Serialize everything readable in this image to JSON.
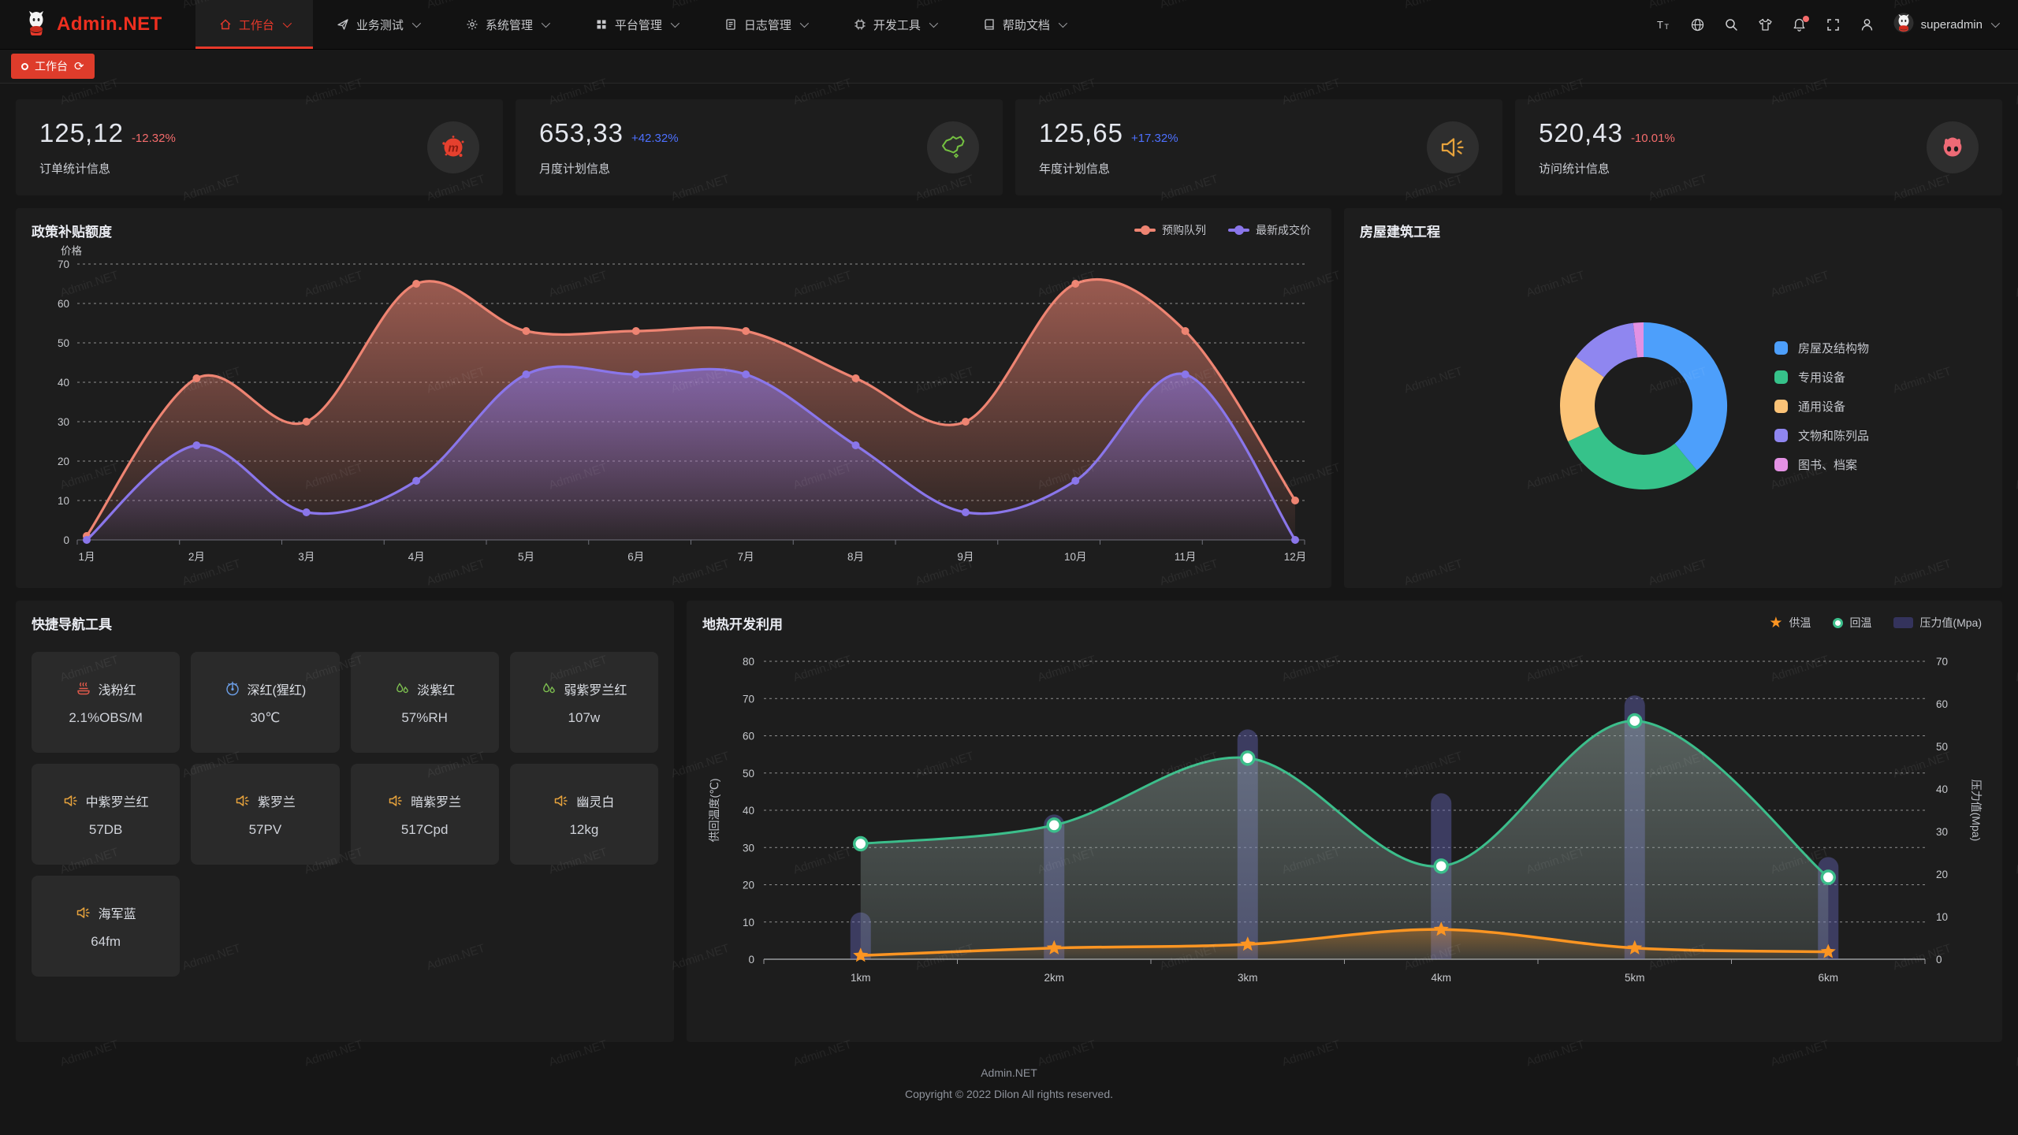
{
  "navbar": {
    "logo_text": "Admin.NET",
    "menu": [
      {
        "key": "workbench",
        "label": "工作台",
        "icon": "home-icon",
        "active": true
      },
      {
        "key": "business",
        "label": "业务测试",
        "icon": "send-icon",
        "active": false
      },
      {
        "key": "system",
        "label": "系统管理",
        "icon": "gear-icon",
        "active": false
      },
      {
        "key": "platform",
        "label": "平台管理",
        "icon": "grid-icon",
        "active": false
      },
      {
        "key": "logs",
        "label": "日志管理",
        "icon": "doc-icon",
        "active": false
      },
      {
        "key": "devtools",
        "label": "开发工具",
        "icon": "chip-icon",
        "active": false
      },
      {
        "key": "docs",
        "label": "帮助文档",
        "icon": "book-icon",
        "active": false
      }
    ],
    "actions": [
      {
        "key": "font-size",
        "icon": "font-size-icon",
        "badge": false
      },
      {
        "key": "language",
        "icon": "globe-icon",
        "badge": false
      },
      {
        "key": "search",
        "icon": "search-icon",
        "badge": false
      },
      {
        "key": "theme",
        "icon": "theme-icon",
        "badge": false
      },
      {
        "key": "notifications",
        "icon": "bell-icon",
        "badge": true
      },
      {
        "key": "fullscreen",
        "icon": "fullscreen-icon",
        "badge": false
      },
      {
        "key": "profile",
        "icon": "person-icon",
        "badge": false
      }
    ],
    "user": {
      "name": "superadmin"
    }
  },
  "tabsbar": {
    "active_tab": "工作台"
  },
  "stat_cards": [
    {
      "value": "125,12",
      "trend": "-12.32%",
      "direction": "down",
      "label": "订单统计信息",
      "icon": "meetup-icon"
    },
    {
      "value": "653,33",
      "trend": "+42.32%",
      "direction": "up",
      "label": "月度计划信息",
      "icon": "china-map-icon"
    },
    {
      "value": "125,65",
      "trend": "+17.32%",
      "direction": "up",
      "label": "年度计划信息",
      "icon": "horn-icon"
    },
    {
      "value": "520,43",
      "trend": "-10.01%",
      "direction": "down",
      "label": "访问统计信息",
      "icon": "cat-icon"
    }
  ],
  "panels": {
    "policy": {
      "title": "政策补贴额度"
    },
    "housing": {
      "title": "房屋建筑工程"
    },
    "tools": {
      "title": "快捷导航工具"
    },
    "geothermal": {
      "title": "地热开发利用"
    }
  },
  "tools": [
    {
      "name": "浅粉红",
      "value": "2.1%OBS/M",
      "icon": "steamer-icon",
      "icon_color": "#E35A4B"
    },
    {
      "name": "深红(猩红)",
      "value": "30℃",
      "icon": "thermometer-icon",
      "icon_color": "#6C9FE8"
    },
    {
      "name": "淡紫红",
      "value": "57%RH",
      "icon": "droplets-icon",
      "icon_color": "#7EC050"
    },
    {
      "name": "弱紫罗兰红",
      "value": "107w",
      "icon": "droplets-icon",
      "icon_color": "#7EC050"
    },
    {
      "name": "中紫罗兰红",
      "value": "57DB",
      "icon": "speaker-icon",
      "icon_color": "#E6A23C"
    },
    {
      "name": "紫罗兰",
      "value": "57PV",
      "icon": "speaker-icon",
      "icon_color": "#E6A23C"
    },
    {
      "name": "暗紫罗兰",
      "value": "517Cpd",
      "icon": "speaker-icon",
      "icon_color": "#E6A23C"
    },
    {
      "name": "幽灵白",
      "value": "12kg",
      "icon": "speaker-icon",
      "icon_color": "#E6A23C"
    },
    {
      "name": "海军蓝",
      "value": "64fm",
      "icon": "speaker-icon",
      "icon_color": "#E6A23C"
    }
  ],
  "chart_data": [
    {
      "id": "policy",
      "type": "line",
      "title": "政策补贴额度",
      "ylabel": "价格",
      "ylim": [
        0,
        70
      ],
      "grid": true,
      "legend_position": "top-right",
      "categories": [
        "1月",
        "2月",
        "3月",
        "4月",
        "5月",
        "6月",
        "7月",
        "8月",
        "9月",
        "10月",
        "11月",
        "12月"
      ],
      "series": [
        {
          "name": "预购队列",
          "color": "#EE8472",
          "values": [
            1,
            41,
            30,
            65,
            53,
            53,
            53,
            41,
            30,
            65,
            53,
            10
          ]
        },
        {
          "name": "最新成交价",
          "color": "#8A76EA",
          "values": [
            0,
            24,
            7,
            15,
            42,
            42,
            42,
            24,
            7,
            15,
            42,
            0
          ]
        }
      ]
    },
    {
      "id": "housing",
      "type": "pie",
      "title": "房屋建筑工程",
      "donut": true,
      "legend_position": "right",
      "items": [
        {
          "label": "房屋及结构物",
          "value": 39,
          "color": "#4D9FFB"
        },
        {
          "label": "专用设备",
          "value": 29,
          "color": "#36C28A"
        },
        {
          "label": "通用设备",
          "value": 17,
          "color": "#FBC377"
        },
        {
          "label": "文物和陈列品",
          "value": 13,
          "color": "#8F86F0"
        },
        {
          "label": "图书、档案",
          "value": 2,
          "color": "#E391E3"
        }
      ]
    },
    {
      "id": "geothermal",
      "type": "mixed",
      "title": "地热开发利用",
      "grid": true,
      "legend_position": "top-right",
      "categories": [
        "1km",
        "2km",
        "3km",
        "4km",
        "5km",
        "6km"
      ],
      "left_axis": {
        "name": "供回温度(℃)",
        "min": 0,
        "max": 80,
        "step": 10
      },
      "right_axis": {
        "name": "压力值(Mpa)",
        "min": 0,
        "max": 70,
        "step": 10
      },
      "series": [
        {
          "name": "供温",
          "type": "line",
          "axis": "left",
          "marker": "star",
          "color": "#FC9522",
          "values": [
            1,
            3,
            4,
            8,
            3,
            2
          ]
        },
        {
          "name": "回温",
          "type": "line",
          "axis": "left",
          "marker": "circle",
          "color": "#3CBE8B",
          "values": [
            31,
            36,
            54,
            25,
            64,
            22
          ]
        },
        {
          "name": "压力值(Mpa)",
          "type": "bar",
          "axis": "right",
          "marker": "rect",
          "color": "#6A69BE",
          "values": [
            11,
            34,
            54,
            39,
            62,
            24
          ]
        }
      ]
    }
  ],
  "footer": {
    "line1": "Admin.NET",
    "line2": "Copyright © 2022 Dilon All rights reserved."
  },
  "watermark": {
    "text": "Admin.NET"
  },
  "colors": {
    "brand_red": "#E8392B",
    "trend_up": "#4D70FF",
    "trend_down": "#F56C6C",
    "panel_bg": "#1d1d1d",
    "page_bg": "#161616"
  }
}
